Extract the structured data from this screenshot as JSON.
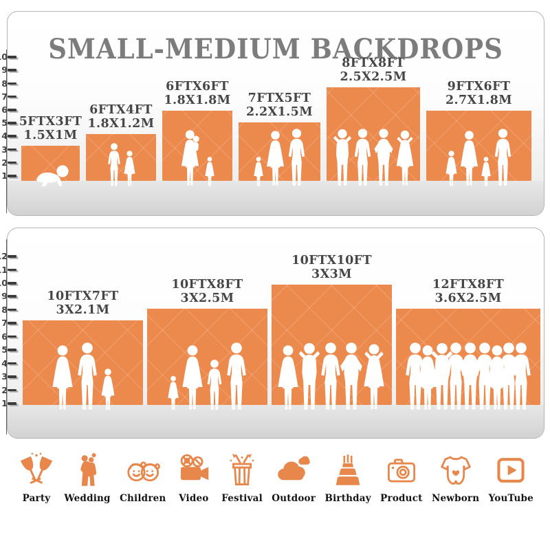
{
  "title": "SMALL-MEDIUM BACKDROPS",
  "accent_color": "#EC8A4E",
  "silhouette_color": "#FFFFFF",
  "panels": [
    {
      "name": "small-medium-sizes",
      "ruler_unit": "FT",
      "ruler_max": 10,
      "backdrops": [
        {
          "size_ft": "5FTX3FT",
          "size_m": "1.5X1M",
          "w_ft": 5,
          "h_ft": 3,
          "people": [
            "baby-crawling"
          ]
        },
        {
          "size_ft": "6FTX4FT",
          "size_m": "1.8X1.2M",
          "w_ft": 6,
          "h_ft": 4,
          "people": [
            "boy",
            "girl"
          ]
        },
        {
          "size_ft": "6FTX6FT",
          "size_m": "1.8X1.8M",
          "w_ft": 6,
          "h_ft": 6,
          "people": [
            "woman-with-baby",
            "toddler-girl"
          ]
        },
        {
          "size_ft": "7FTX5FT",
          "size_m": "2.2X1.5M",
          "w_ft": 7,
          "h_ft": 5,
          "people": [
            "toddler-girl",
            "woman",
            "man"
          ]
        },
        {
          "size_ft": "8FTX8FT",
          "size_m": "2.5X2.5M",
          "w_ft": 8,
          "h_ft": 8,
          "people": [
            "man-arms-up",
            "man",
            "man-hands-on-hips",
            "woman-hands-on-head"
          ]
        },
        {
          "size_ft": "9FTX6FT",
          "size_m": "2.7X1.8M",
          "w_ft": 9,
          "h_ft": 6,
          "people": [
            "girl",
            "woman",
            "toddler-girl",
            "man"
          ]
        }
      ]
    },
    {
      "name": "medium-large-sizes",
      "ruler_unit": "FT",
      "ruler_max": 12,
      "backdrops": [
        {
          "size_ft": "10FTX7FT",
          "size_m": "3X2.1M",
          "w_ft": 10,
          "h_ft": 7,
          "people": [
            "woman",
            "man",
            "girl"
          ]
        },
        {
          "size_ft": "10FTX8FT",
          "size_m": "3X2.5M",
          "w_ft": 10,
          "h_ft": 8,
          "people": [
            "toddler-girl",
            "woman",
            "boy",
            "man"
          ]
        },
        {
          "size_ft": "10FTX10FT",
          "size_m": "3X3M",
          "w_ft": 10,
          "h_ft": 10,
          "people": [
            "woman",
            "man-arms-up",
            "man",
            "man-hands-on-hips",
            "woman-hands-on-head"
          ]
        },
        {
          "size_ft": "12FTX8FT",
          "size_m": "3.6X2.5M",
          "w_ft": 12,
          "h_ft": 8,
          "people": [
            "man",
            "woman",
            "man-arms-up",
            "man",
            "man-hands-on-hips",
            "man",
            "woman",
            "man",
            "man"
          ]
        }
      ]
    }
  ],
  "categories": [
    {
      "label": "Party",
      "icon": "party"
    },
    {
      "label": "Wedding",
      "icon": "wedding"
    },
    {
      "label": "Children",
      "icon": "children"
    },
    {
      "label": "Video",
      "icon": "video"
    },
    {
      "label": "Festival",
      "icon": "festival"
    },
    {
      "label": "Outdoor",
      "icon": "outdoor"
    },
    {
      "label": "Birthday",
      "icon": "birthday"
    },
    {
      "label": "Product",
      "icon": "product"
    },
    {
      "label": "Newborn",
      "icon": "newborn"
    },
    {
      "label": "YouTube",
      "icon": "youtube"
    }
  ]
}
